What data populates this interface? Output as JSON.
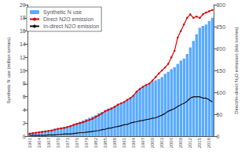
{
  "chart_data": {
    "type": "bar",
    "ylabel": "Synthetic N use (million tonnes)",
    "y2label": "Direct/In-direct N₂O emission (kilo tonnes)",
    "categories": [
      "1961",
      null,
      null,
      "1964",
      null,
      null,
      "1967",
      null,
      null,
      "1970",
      null,
      null,
      "1973",
      null,
      null,
      "1976",
      null,
      null,
      "1979",
      null,
      null,
      "1982",
      null,
      null,
      "1985",
      null,
      null,
      "1988",
      null,
      null,
      "1991",
      null,
      null,
      "1994",
      null,
      null,
      "1997",
      null,
      null,
      "2000",
      null,
      null,
      "2003",
      null,
      null,
      "2006",
      null,
      null,
      "2009",
      null,
      null,
      "2012",
      null,
      null,
      "2015",
      null,
      null,
      "2018",
      null
    ],
    "series": [
      {
        "name": "Synthetic N use",
        "type": "bar",
        "color": "#5aabff",
        "values": [
          0.4,
          0.5,
          0.6,
          0.65,
          0.7,
          0.8,
          0.9,
          1.0,
          1.1,
          1.2,
          1.3,
          1.4,
          1.5,
          1.6,
          1.8,
          2.0,
          2.2,
          2.4,
          2.6,
          2.8,
          3.0,
          3.2,
          3.5,
          3.7,
          4.0,
          4.2,
          4.4,
          4.6,
          4.8,
          5.0,
          5.2,
          5.5,
          5.8,
          6.2,
          6.8,
          7.2,
          7.5,
          7.8,
          8.0,
          8.3,
          8.5,
          8.7,
          9.0,
          9.5,
          9.8,
          10.2,
          10.5,
          11.0,
          11.5,
          11.8,
          12.5,
          13.5,
          14.5,
          15.5,
          16.5,
          16.8,
          17.0,
          17.5,
          18.0
        ]
      },
      {
        "name": "Direct N2O emission",
        "type": "line",
        "axis": "y2",
        "color": "#dd0000",
        "marker": "circle",
        "values": [
          6,
          7,
          8,
          9,
          10,
          11,
          12,
          13,
          15,
          17,
          18,
          19,
          21,
          23,
          26,
          28,
          30,
          32,
          35,
          37,
          40,
          44,
          48,
          52,
          57,
          60,
          63,
          67,
          72,
          75,
          78,
          83,
          87,
          93,
          102,
          108,
          113,
          117,
          120,
          127,
          135,
          143,
          150,
          157,
          165,
          180,
          195,
          225,
          240,
          255,
          270,
          278,
          270,
          273,
          270,
          278,
          282,
          285,
          288
        ]
      },
      {
        "name": "In-direct N2O emission",
        "type": "line",
        "axis": "y2",
        "color": "#111111",
        "marker": "none",
        "values": [
          2,
          2,
          2,
          2,
          2,
          2,
          3,
          3,
          3,
          4,
          4,
          5,
          5,
          5,
          6,
          7,
          8,
          8,
          9,
          10,
          11,
          12,
          13,
          15,
          16,
          18,
          19,
          21,
          22,
          24,
          26,
          27,
          30,
          32,
          33,
          35,
          36,
          38,
          39,
          41,
          42,
          45,
          48,
          52,
          57,
          60,
          63,
          68,
          72,
          75,
          80,
          87,
          90,
          90,
          90,
          87,
          87,
          83,
          78
        ]
      }
    ],
    "ylim": [
      0,
      20
    ],
    "yticks": [
      0,
      2,
      4,
      6,
      8,
      10,
      12,
      14,
      16,
      18,
      20
    ],
    "y2lim": [
      0,
      300
    ],
    "y2ticks": [
      0,
      50,
      100,
      150,
      200,
      250,
      300
    ],
    "grid": false,
    "legend": "upper left"
  }
}
